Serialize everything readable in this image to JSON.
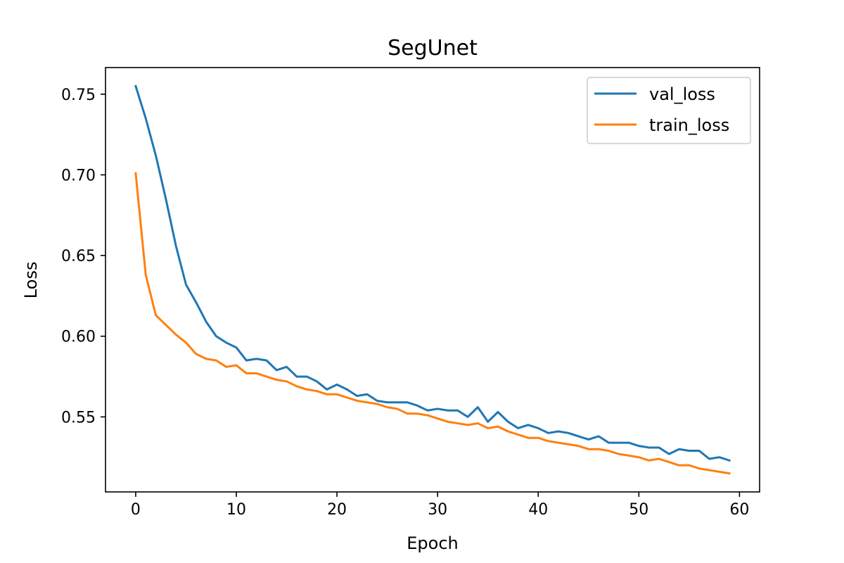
{
  "chart_data": {
    "type": "line",
    "title": "SegUnet",
    "xlabel": "Epoch",
    "ylabel": "Loss",
    "xlim": [
      -3,
      62
    ],
    "ylim": [
      0.5035,
      0.7665
    ],
    "xticks": [
      0,
      10,
      20,
      30,
      40,
      50,
      60
    ],
    "yticks": [
      0.55,
      0.6,
      0.65,
      0.7,
      0.75
    ],
    "xtick_labels": [
      "0",
      "10",
      "20",
      "30",
      "40",
      "50",
      "60"
    ],
    "ytick_labels": [
      "0.55",
      "0.60",
      "0.65",
      "0.70",
      "0.75"
    ],
    "grid": false,
    "legend_position": "top-right",
    "series": [
      {
        "name": "val_loss",
        "color": "#1f77b4",
        "x": [
          0,
          1,
          2,
          3,
          4,
          5,
          6,
          7,
          8,
          9,
          10,
          11,
          12,
          13,
          14,
          15,
          16,
          17,
          18,
          19,
          20,
          21,
          22,
          23,
          24,
          25,
          26,
          27,
          28,
          29,
          30,
          31,
          32,
          33,
          34,
          35,
          36,
          37,
          38,
          39,
          40,
          41,
          42,
          43,
          44,
          45,
          46,
          47,
          48,
          49,
          50,
          51,
          52,
          53,
          54,
          55,
          56,
          57,
          58,
          59
        ],
        "values": [
          0.755,
          0.735,
          0.712,
          0.685,
          0.656,
          0.632,
          0.621,
          0.609,
          0.6,
          0.596,
          0.593,
          0.585,
          0.586,
          0.585,
          0.579,
          0.581,
          0.575,
          0.575,
          0.572,
          0.567,
          0.57,
          0.567,
          0.563,
          0.564,
          0.56,
          0.559,
          0.559,
          0.559,
          0.557,
          0.554,
          0.555,
          0.554,
          0.554,
          0.55,
          0.556,
          0.547,
          0.553,
          0.547,
          0.543,
          0.545,
          0.543,
          0.54,
          0.541,
          0.54,
          0.538,
          0.536,
          0.538,
          0.534,
          0.534,
          0.534,
          0.532,
          0.531,
          0.531,
          0.527,
          0.53,
          0.529,
          0.529,
          0.524,
          0.525,
          0.523
        ]
      },
      {
        "name": "train_loss",
        "color": "#ff7f0e",
        "x": [
          0,
          1,
          2,
          3,
          4,
          5,
          6,
          7,
          8,
          9,
          10,
          11,
          12,
          13,
          14,
          15,
          16,
          17,
          18,
          19,
          20,
          21,
          22,
          23,
          24,
          25,
          26,
          27,
          28,
          29,
          30,
          31,
          32,
          33,
          34,
          35,
          36,
          37,
          38,
          39,
          40,
          41,
          42,
          43,
          44,
          45,
          46,
          47,
          48,
          49,
          50,
          51,
          52,
          53,
          54,
          55,
          56,
          57,
          58,
          59
        ],
        "values": [
          0.701,
          0.638,
          0.613,
          0.607,
          0.601,
          0.596,
          0.589,
          0.586,
          0.585,
          0.581,
          0.582,
          0.577,
          0.577,
          0.575,
          0.573,
          0.572,
          0.569,
          0.567,
          0.566,
          0.564,
          0.564,
          0.562,
          0.56,
          0.559,
          0.558,
          0.556,
          0.555,
          0.552,
          0.552,
          0.551,
          0.549,
          0.547,
          0.546,
          0.545,
          0.546,
          0.543,
          0.544,
          0.541,
          0.539,
          0.537,
          0.537,
          0.535,
          0.534,
          0.533,
          0.532,
          0.53,
          0.53,
          0.529,
          0.527,
          0.526,
          0.525,
          0.523,
          0.524,
          0.522,
          0.52,
          0.52,
          0.518,
          0.517,
          0.516,
          0.515
        ]
      }
    ]
  }
}
